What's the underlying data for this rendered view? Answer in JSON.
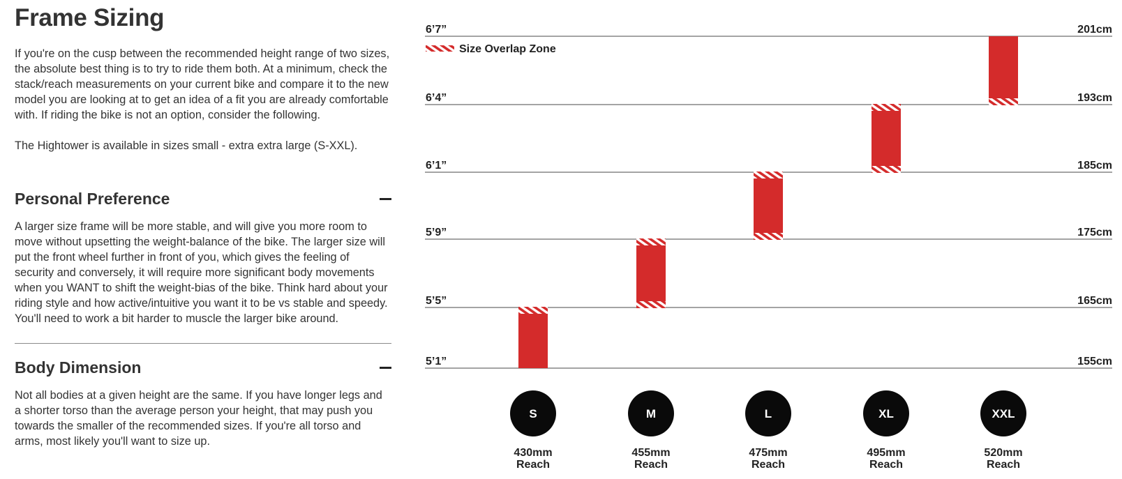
{
  "page_title": "Frame Sizing",
  "intro_text": "If you're on the cusp between the recommended height range of two sizes, the absolute best thing is to try to ride them both. At a minimum, check the stack/reach measurements on your current bike and compare it to the new model you are looking at to get an idea of a fit you are already comfortable with. If riding the bike is not an option, consider the following.",
  "availability_text": "The Hightower is available in sizes small - extra extra large (S-XXL).",
  "sections": [
    {
      "title": "Personal Preference",
      "body": "A larger size frame will be more stable, and will give you more room to move without upsetting the weight-balance of the bike. The larger size will put the front wheel further in front of you, which gives the feeling of security and conversely, it will require more significant body movements when you WANT to shift the weight-bias of the bike. Think hard about your riding style and how active/intuitive you want it to be vs stable and speedy. You'll need to work a bit harder to muscle the larger bike around."
    },
    {
      "title": "Body Dimension",
      "body": "Not all bodies at a given height are the same. If you have longer legs and a shorter torso than the average person your height, that may push you towards the smaller of the recommended sizes. If you're all torso and arms, most likely you'll want to size up."
    }
  ],
  "chart_data": {
    "type": "bar",
    "legend": {
      "label": "Size Overlap Zone",
      "placement": "top-left"
    },
    "left_tick_labels": [
      "5’1”",
      "5’5”",
      "5’9”",
      "6’1”",
      "6’4”",
      "6’7”"
    ],
    "right_tick_labels": [
      "155cm",
      "165cm",
      "175cm",
      "185cm",
      "193cm",
      "201cm"
    ],
    "ticks_cm": [
      155,
      165,
      175,
      185,
      193,
      201
    ],
    "reach_suffix": "Reach",
    "sizes": [
      {
        "label": "S",
        "reach": "430mm",
        "min_cm": 155,
        "max_cm": 165,
        "overlap_low": false,
        "overlap_high": true
      },
      {
        "label": "M",
        "reach": "455mm",
        "min_cm": 165,
        "max_cm": 175,
        "overlap_low": true,
        "overlap_high": true
      },
      {
        "label": "L",
        "reach": "475mm",
        "min_cm": 175,
        "max_cm": 185,
        "overlap_low": true,
        "overlap_high": true
      },
      {
        "label": "XL",
        "reach": "495mm",
        "min_cm": 185,
        "max_cm": 193,
        "overlap_low": true,
        "overlap_high": true
      },
      {
        "label": "XXL",
        "reach": "520mm",
        "min_cm": 193,
        "max_cm": 201,
        "overlap_low": true,
        "overlap_high": false
      }
    ],
    "bar_color": "#d42b2b",
    "line_color": "#6e6e6e",
    "badge_color": "#0a0a0a"
  }
}
